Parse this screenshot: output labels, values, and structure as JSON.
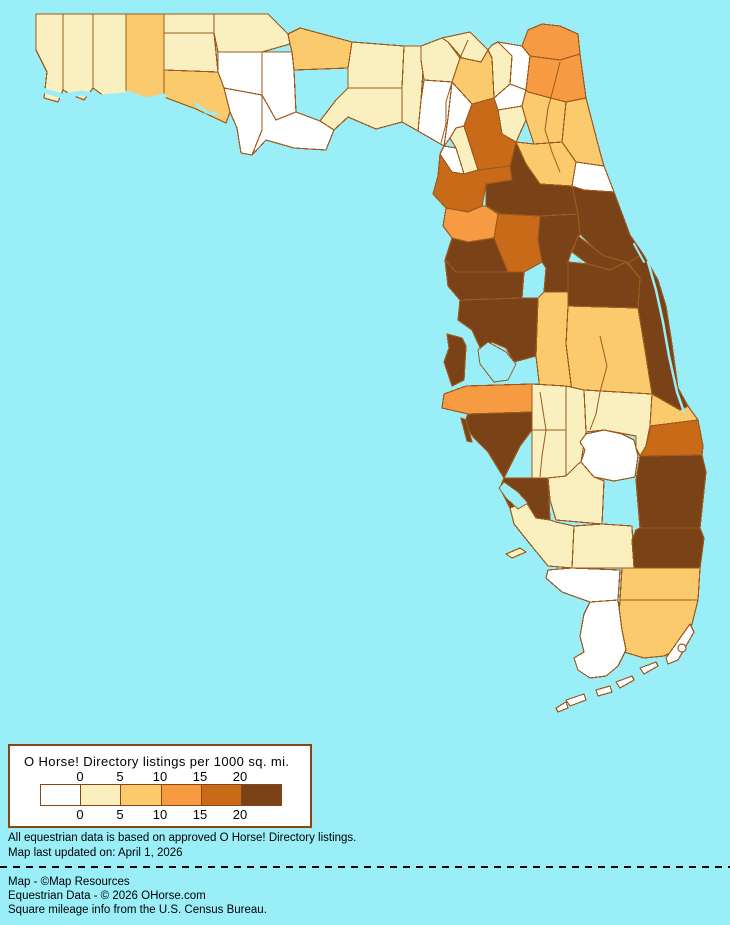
{
  "map": {
    "region": "Florida counties choropleth",
    "water_color": "#9AEEF8",
    "border_color": "#9C5A1E",
    "lake_color": "#FFFFFF",
    "counties": {
      "escambia": 2,
      "santa-rosa": 2,
      "okaloosa": 2,
      "walton": 3,
      "holmes": 2,
      "washington": 2,
      "bay": 3,
      "jackson": 2,
      "calhoun": 1,
      "gulf": 1,
      "liberty": 1,
      "franklin": 1,
      "gadsden": 3,
      "leon": 2,
      "wakulla": 2,
      "jefferson": 2,
      "madison": 2,
      "taylor": 1,
      "hamilton": 2,
      "suwannee": 3,
      "lafayette": 1,
      "dixie": 1,
      "columbia": 2,
      "baker": 1,
      "union": 1,
      "bradford": 2,
      "nassau": 4,
      "duval": 4,
      "clay": 3,
      "st-johns": 3,
      "putnam": 3,
      "flagler": 1,
      "alachua": 5,
      "gilchrist": 2,
      "levy": 5,
      "marion": 6,
      "volusia": 6,
      "citrus": 4,
      "sumter": 5,
      "lake": 6,
      "hernando": 6,
      "pasco": 6,
      "hillsborough": 6,
      "pinellas": 6,
      "polk": 3,
      "osceola": 3,
      "orange": 6,
      "seminole": 6,
      "brevard": 6,
      "indian-river": 3,
      "st-lucie": 5,
      "okeechobee": 2,
      "highlands": 2,
      "hardee": 2,
      "desoto": 2,
      "manatee": 4,
      "sarasota": 6,
      "charlotte": 6,
      "glades": 2,
      "lee": 2,
      "hendry": 2,
      "martin": 6,
      "palm-beach": 6,
      "broward": 3,
      "miami-dade": 3,
      "collier": 1,
      "monroe": 1
    }
  },
  "legend": {
    "title": "O Horse! Directory listings per 1000 sq. mi.",
    "tick_labels": [
      "0",
      "5",
      "10",
      "15",
      "20"
    ],
    "colors": [
      "#FFFFFF",
      "#FAF0BF",
      "#FBCA6D",
      "#F69B41",
      "#C86A17",
      "#7A4317"
    ],
    "border_color": "#8B4513"
  },
  "footer": {
    "notes": [
      "All equestrian data is based on approved O Horse! Directory listings.",
      "Map last updated on: April 1, 2026"
    ],
    "credits": [
      "Map - ©Map Resources",
      "Equestrian Data - © 2026 OHorse.com",
      "Square mileage info from the U.S. Census Bureau."
    ]
  }
}
